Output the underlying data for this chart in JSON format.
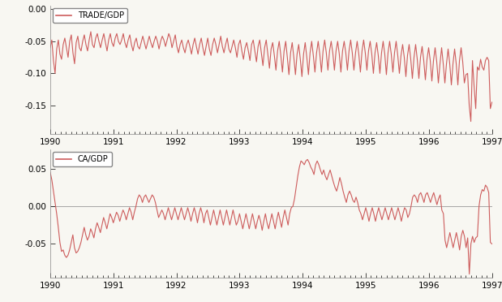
{
  "trade_gdp": [
    -0.06,
    -0.048,
    -0.08,
    -0.1,
    -0.062,
    -0.048,
    -0.07,
    -0.078,
    -0.055,
    -0.045,
    -0.06,
    -0.075,
    -0.05,
    -0.04,
    -0.068,
    -0.085,
    -0.052,
    -0.042,
    -0.06,
    -0.065,
    -0.05,
    -0.04,
    -0.055,
    -0.065,
    -0.048,
    -0.035,
    -0.055,
    -0.06,
    -0.045,
    -0.038,
    -0.05,
    -0.06,
    -0.048,
    -0.038,
    -0.052,
    -0.065,
    -0.048,
    -0.038,
    -0.052,
    -0.058,
    -0.045,
    -0.038,
    -0.05,
    -0.055,
    -0.048,
    -0.038,
    -0.052,
    -0.06,
    -0.048,
    -0.04,
    -0.055,
    -0.065,
    -0.052,
    -0.045,
    -0.058,
    -0.062,
    -0.052,
    -0.042,
    -0.052,
    -0.062,
    -0.052,
    -0.042,
    -0.052,
    -0.06,
    -0.05,
    -0.042,
    -0.05,
    -0.062,
    -0.05,
    -0.042,
    -0.048,
    -0.058,
    -0.048,
    -0.038,
    -0.045,
    -0.06,
    -0.05,
    -0.04,
    -0.058,
    -0.068,
    -0.055,
    -0.048,
    -0.06,
    -0.068,
    -0.055,
    -0.048,
    -0.058,
    -0.07,
    -0.055,
    -0.045,
    -0.058,
    -0.07,
    -0.055,
    -0.045,
    -0.06,
    -0.072,
    -0.058,
    -0.045,
    -0.062,
    -0.072,
    -0.055,
    -0.045,
    -0.055,
    -0.068,
    -0.055,
    -0.042,
    -0.058,
    -0.068,
    -0.055,
    -0.045,
    -0.062,
    -0.068,
    -0.058,
    -0.048,
    -0.06,
    -0.075,
    -0.055,
    -0.048,
    -0.065,
    -0.078,
    -0.06,
    -0.052,
    -0.065,
    -0.08,
    -0.055,
    -0.048,
    -0.065,
    -0.082,
    -0.058,
    -0.048,
    -0.068,
    -0.088,
    -0.06,
    -0.048,
    -0.07,
    -0.092,
    -0.062,
    -0.052,
    -0.072,
    -0.095,
    -0.065,
    -0.05,
    -0.072,
    -0.098,
    -0.065,
    -0.05,
    -0.075,
    -0.102,
    -0.068,
    -0.052,
    -0.075,
    -0.102,
    -0.07,
    -0.055,
    -0.078,
    -0.105,
    -0.07,
    -0.052,
    -0.075,
    -0.102,
    -0.068,
    -0.05,
    -0.072,
    -0.098,
    -0.068,
    -0.05,
    -0.07,
    -0.098,
    -0.065,
    -0.048,
    -0.068,
    -0.095,
    -0.065,
    -0.05,
    -0.068,
    -0.095,
    -0.065,
    -0.05,
    -0.07,
    -0.098,
    -0.065,
    -0.05,
    -0.068,
    -0.095,
    -0.065,
    -0.048,
    -0.068,
    -0.095,
    -0.068,
    -0.05,
    -0.07,
    -0.098,
    -0.065,
    -0.048,
    -0.068,
    -0.095,
    -0.065,
    -0.05,
    -0.07,
    -0.1,
    -0.068,
    -0.052,
    -0.072,
    -0.1,
    -0.068,
    -0.05,
    -0.07,
    -0.102,
    -0.068,
    -0.05,
    -0.07,
    -0.098,
    -0.068,
    -0.05,
    -0.072,
    -0.1,
    -0.072,
    -0.055,
    -0.075,
    -0.105,
    -0.072,
    -0.055,
    -0.078,
    -0.108,
    -0.075,
    -0.055,
    -0.078,
    -0.108,
    -0.075,
    -0.058,
    -0.08,
    -0.11,
    -0.078,
    -0.06,
    -0.08,
    -0.112,
    -0.08,
    -0.06,
    -0.082,
    -0.115,
    -0.085,
    -0.06,
    -0.085,
    -0.115,
    -0.085,
    -0.062,
    -0.085,
    -0.118,
    -0.085,
    -0.062,
    -0.085,
    -0.118,
    -0.08,
    -0.06,
    -0.082,
    -0.115,
    -0.102,
    -0.1,
    -0.15,
    -0.175,
    -0.08,
    -0.12,
    -0.155,
    -0.09,
    -0.095,
    -0.078,
    -0.09,
    -0.095,
    -0.08,
    -0.075,
    -0.08,
    -0.155,
    -0.145
  ],
  "ca_gdp": [
    0.045,
    0.035,
    0.02,
    0.005,
    -0.01,
    -0.028,
    -0.048,
    -0.06,
    -0.058,
    -0.065,
    -0.068,
    -0.065,
    -0.058,
    -0.048,
    -0.038,
    -0.055,
    -0.062,
    -0.06,
    -0.055,
    -0.048,
    -0.038,
    -0.028,
    -0.038,
    -0.045,
    -0.04,
    -0.03,
    -0.035,
    -0.042,
    -0.03,
    -0.022,
    -0.028,
    -0.035,
    -0.025,
    -0.015,
    -0.022,
    -0.03,
    -0.02,
    -0.01,
    -0.015,
    -0.022,
    -0.015,
    -0.008,
    -0.012,
    -0.02,
    -0.012,
    -0.005,
    -0.01,
    -0.018,
    -0.01,
    -0.002,
    -0.008,
    -0.018,
    -0.008,
    0.0,
    0.01,
    0.015,
    0.012,
    0.005,
    0.012,
    0.015,
    0.01,
    0.005,
    0.01,
    0.015,
    0.012,
    0.005,
    -0.005,
    -0.015,
    -0.01,
    -0.005,
    -0.01,
    -0.018,
    -0.01,
    -0.002,
    -0.01,
    -0.018,
    -0.01,
    -0.002,
    -0.01,
    -0.018,
    -0.01,
    -0.002,
    -0.01,
    -0.018,
    -0.01,
    -0.002,
    -0.01,
    -0.02,
    -0.01,
    -0.002,
    -0.01,
    -0.022,
    -0.01,
    -0.002,
    -0.01,
    -0.022,
    -0.01,
    -0.005,
    -0.015,
    -0.025,
    -0.015,
    -0.005,
    -0.015,
    -0.025,
    -0.015,
    -0.005,
    -0.015,
    -0.025,
    -0.015,
    -0.005,
    -0.015,
    -0.025,
    -0.015,
    -0.005,
    -0.015,
    -0.025,
    -0.02,
    -0.01,
    -0.02,
    -0.03,
    -0.02,
    -0.01,
    -0.02,
    -0.03,
    -0.02,
    -0.01,
    -0.02,
    -0.03,
    -0.02,
    -0.012,
    -0.02,
    -0.032,
    -0.02,
    -0.01,
    -0.022,
    -0.03,
    -0.02,
    -0.01,
    -0.02,
    -0.03,
    -0.018,
    -0.008,
    -0.018,
    -0.028,
    -0.015,
    -0.005,
    -0.015,
    -0.025,
    -0.01,
    -0.002,
    0.0,
    0.01,
    0.025,
    0.04,
    0.052,
    0.06,
    0.058,
    0.055,
    0.06,
    0.062,
    0.058,
    0.052,
    0.048,
    0.042,
    0.055,
    0.06,
    0.055,
    0.048,
    0.042,
    0.048,
    0.04,
    0.035,
    0.042,
    0.048,
    0.04,
    0.032,
    0.025,
    0.02,
    0.028,
    0.038,
    0.03,
    0.02,
    0.012,
    0.005,
    0.015,
    0.02,
    0.015,
    0.008,
    0.005,
    0.012,
    0.005,
    -0.005,
    -0.01,
    -0.018,
    -0.01,
    -0.002,
    -0.01,
    -0.02,
    -0.01,
    -0.002,
    -0.01,
    -0.02,
    -0.01,
    -0.002,
    -0.01,
    -0.018,
    -0.01,
    -0.002,
    -0.01,
    -0.018,
    -0.01,
    -0.002,
    -0.01,
    -0.018,
    -0.01,
    -0.002,
    -0.01,
    -0.02,
    -0.01,
    -0.002,
    -0.005,
    -0.015,
    -0.01,
    0.0,
    0.012,
    0.015,
    0.012,
    0.005,
    0.015,
    0.018,
    0.012,
    0.005,
    0.015,
    0.018,
    0.012,
    0.005,
    0.012,
    0.018,
    0.01,
    0.002,
    0.01,
    0.015,
    -0.005,
    -0.01,
    -0.045,
    -0.055,
    -0.045,
    -0.035,
    -0.045,
    -0.055,
    -0.045,
    -0.035,
    -0.045,
    -0.058,
    -0.04,
    -0.032,
    -0.04,
    -0.055,
    -0.042,
    -0.09,
    -0.05,
    -0.04,
    -0.048,
    -0.042,
    -0.04,
    0.0,
    0.015,
    0.022,
    0.02,
    0.028,
    0.025,
    0.018,
    -0.048,
    -0.05
  ],
  "line_color": "#cd5c5c",
  "background_color": "#f8f7f2",
  "trade_ylim": [
    -0.195,
    0.005
  ],
  "ca_ylim": [
    -0.095,
    0.075
  ],
  "trade_yticks": [
    0.0,
    -0.05,
    -0.1,
    -0.15
  ],
  "ca_yticks": [
    0.05,
    0.0,
    -0.05
  ],
  "xticks": [
    1990,
    1991,
    1992,
    1993,
    1994,
    1995,
    1996,
    1997
  ],
  "legend1": "TRADE/GDP",
  "legend2": "CA/GDP"
}
